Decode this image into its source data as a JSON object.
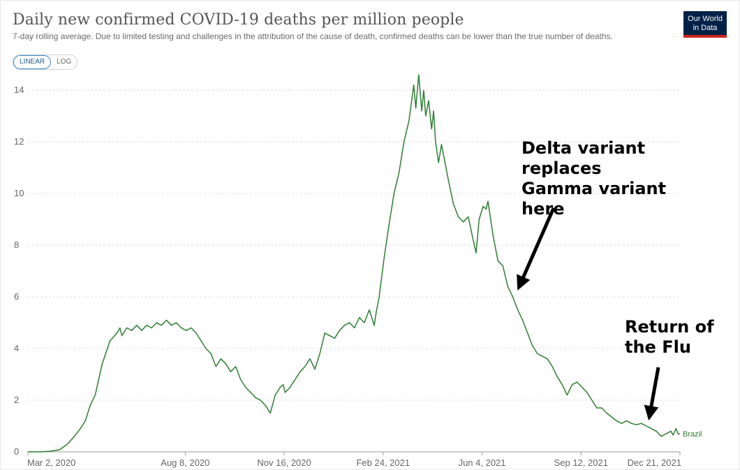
{
  "header": {
    "title": "Daily new confirmed COVID-19 deaths per million people",
    "subtitle": "7-day rolling average. Due to limited testing and challenges in the attribution of the cause of death, confirmed deaths can be lower than the true number of deaths."
  },
  "logo": {
    "line1": "Our World",
    "line2": "in Data"
  },
  "scale_toggle": {
    "linear_label": "LINEAR",
    "log_label": "LOG",
    "selected": "LINEAR"
  },
  "annotations": {
    "delta": "Delta variant replaces Gamma variant here",
    "flu": "Return of the Flu"
  },
  "colors": {
    "series": "#2e7d32",
    "grid": "#dddddd",
    "axis": "#999999",
    "logo_bg": "#002147",
    "logo_bar": "#ce261e"
  },
  "chart_data": {
    "type": "line",
    "title": "Daily new confirmed COVID-19 deaths per million people",
    "xlabel": "",
    "ylabel": "",
    "ylim": [
      0,
      14.6
    ],
    "yticks": [
      0,
      2,
      4,
      6,
      8,
      10,
      12,
      14
    ],
    "xlim_day": [
      0,
      659
    ],
    "xticks": [
      {
        "label": "Mar 2, 2020",
        "day": 0
      },
      {
        "label": "Aug 8, 2020",
        "day": 159
      },
      {
        "label": "Nov 16, 2020",
        "day": 259
      },
      {
        "label": "Feb 24, 2021",
        "day": 359
      },
      {
        "label": "Jun 4, 2021",
        "day": 459
      },
      {
        "label": "Sep 12, 2021",
        "day": 559
      },
      {
        "label": "Dec 21, 2021",
        "day": 659
      }
    ],
    "grid": true,
    "series": [
      {
        "name": "Brazil",
        "x": [
          0,
          12,
          22,
          32,
          40,
          47,
          53,
          58,
          63,
          68,
          75,
          83,
          90,
          93,
          95,
          100,
          105,
          110,
          115,
          120,
          125,
          130,
          135,
          140,
          145,
          150,
          155,
          160,
          165,
          170,
          175,
          180,
          185,
          190,
          195,
          200,
          205,
          210,
          215,
          220,
          225,
          230,
          235,
          240,
          245,
          250,
          255,
          258,
          260,
          265,
          270,
          275,
          280,
          285,
          290,
          295,
          300,
          305,
          310,
          315,
          320,
          325,
          330,
          335,
          340,
          345,
          350,
          352,
          355,
          360,
          365,
          370,
          375,
          380,
          385,
          390,
          392,
          395,
          398,
          400,
          402,
          405,
          408,
          410,
          412,
          415,
          418,
          420,
          425,
          430,
          435,
          440,
          445,
          450,
          453,
          456,
          460,
          463,
          465,
          470,
          475,
          480,
          485,
          490,
          495,
          500,
          505,
          510,
          515,
          520,
          525,
          530,
          535,
          540,
          545,
          550,
          555,
          560,
          565,
          570,
          575,
          580,
          585,
          590,
          595,
          600,
          605,
          610,
          615,
          620,
          625,
          630,
          635,
          640,
          645,
          650,
          652,
          655,
          657,
          659
        ],
        "y": [
          0,
          0,
          0.02,
          0.08,
          0.3,
          0.6,
          0.9,
          1.2,
          1.8,
          2.2,
          3.4,
          4.3,
          4.6,
          4.8,
          4.5,
          4.8,
          4.7,
          4.9,
          4.7,
          4.9,
          4.8,
          5.0,
          4.9,
          5.1,
          4.9,
          5.0,
          4.8,
          4.7,
          4.8,
          4.6,
          4.3,
          4.0,
          3.8,
          3.3,
          3.6,
          3.4,
          3.1,
          3.3,
          2.8,
          2.5,
          2.3,
          2.1,
          2.0,
          1.8,
          1.5,
          2.2,
          2.5,
          2.6,
          2.3,
          2.5,
          2.8,
          3.1,
          3.3,
          3.6,
          3.2,
          3.8,
          4.6,
          4.5,
          4.4,
          4.7,
          4.9,
          5.0,
          4.8,
          5.2,
          5.0,
          5.5,
          4.9,
          5.4,
          6.0,
          7.5,
          8.8,
          10.0,
          10.8,
          12.0,
          12.8,
          14.2,
          13.3,
          14.6,
          13.2,
          14.0,
          13.0,
          13.6,
          12.5,
          13.2,
          12.0,
          11.2,
          11.9,
          11.5,
          10.5,
          9.6,
          9.1,
          8.9,
          9.1,
          8.2,
          7.7,
          9.0,
          9.5,
          9.4,
          9.7,
          8.4,
          7.4,
          7.2,
          6.4,
          6.0,
          5.5,
          5.1,
          4.6,
          4.1,
          3.8,
          3.7,
          3.6,
          3.3,
          2.9,
          2.6,
          2.2,
          2.6,
          2.7,
          2.5,
          2.3,
          2.0,
          1.7,
          1.7,
          1.5,
          1.35,
          1.2,
          1.1,
          1.2,
          1.1,
          1.05,
          1.1,
          1.0,
          0.9,
          0.8,
          0.6,
          0.7,
          0.8,
          0.65,
          0.9,
          0.7,
          0.7
        ]
      }
    ],
    "series_label": "Brazil"
  }
}
